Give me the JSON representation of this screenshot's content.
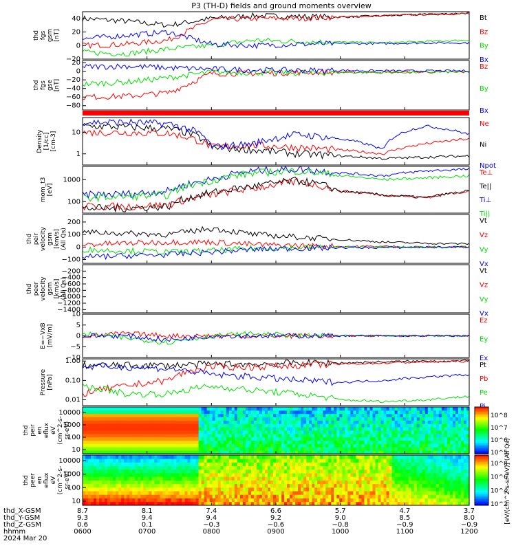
{
  "title": "P3 (TH-D) fields and ground moments overview",
  "colors": {
    "black": "#000000",
    "red": "#ff0000",
    "green": "#00e000",
    "blue": "#0000ff"
  },
  "chart_data": [
    {
      "type": "line",
      "panel": "fgs_gsm",
      "ylabel": [
        "thd",
        "fgs",
        "gsm",
        "[nT]"
      ],
      "ylim": [
        -20,
        50
      ],
      "yticks": [
        "40",
        "20",
        "0",
        "−20"
      ],
      "ytick_values": [
        40,
        20,
        0,
        -20
      ],
      "series": [
        {
          "name": "Bt",
          "color": "#000000",
          "values": [
            40,
            36,
            30,
            40,
            44,
            43,
            42,
            44,
            46,
            48
          ]
        },
        {
          "name": "Bz",
          "color": "#ff0000",
          "values": [
            0,
            2,
            8,
            38,
            40,
            40,
            42,
            44,
            46,
            47
          ]
        },
        {
          "name": "By",
          "color": "#00e000",
          "values": [
            -10,
            -12,
            -5,
            0,
            8,
            6,
            5,
            4,
            6,
            8
          ]
        },
        {
          "name": "Bx",
          "color": "#0000ff",
          "values": [
            10,
            15,
            20,
            2,
            0,
            2,
            3,
            3,
            4,
            4
          ]
        }
      ]
    },
    {
      "type": "line",
      "panel": "fgs_gse",
      "ylabel": [
        "thd",
        "fgs",
        "gse",
        "[nT]"
      ],
      "ylim": [
        -90,
        25
      ],
      "yticks": [
        "20",
        "0",
        "−20",
        "−40",
        "−60",
        "−80"
      ],
      "ytick_values": [
        20,
        0,
        -20,
        -40,
        -60,
        -80
      ],
      "series": [
        {
          "name": "Bz",
          "color": "#ff0000",
          "values": [
            -60,
            -58,
            -50,
            -5,
            -5,
            -3,
            -2,
            -2,
            -2,
            -2
          ]
        },
        {
          "name": "By",
          "color": "#00e000",
          "values": [
            -30,
            -25,
            -15,
            -2,
            -3,
            -4,
            -3,
            -3,
            -2,
            -2
          ]
        },
        {
          "name": "Bx",
          "color": "#0000ff",
          "values": [
            10,
            12,
            8,
            5,
            3,
            2,
            2,
            1,
            1,
            1
          ]
        }
      ]
    },
    {
      "type": "line",
      "panel": "density",
      "scale": "log",
      "ylabel": [
        "Density",
        "[1/cc]",
        "[cm-3]"
      ],
      "ylim": [
        0.3,
        50
      ],
      "yticks": [
        "10",
        "1"
      ],
      "ytick_values": [
        10,
        1
      ],
      "series": [
        {
          "name": "Ne",
          "color": "#ff0000",
          "values": [
            10,
            10,
            9,
            2,
            2.5,
            2,
            1.5,
            1,
            3,
            5
          ]
        },
        {
          "name": "Ni",
          "color": "#000000",
          "values": [
            20,
            18,
            15,
            2,
            1.5,
            1,
            0.8,
            0.6,
            0.7,
            0.8
          ]
        },
        {
          "name": "Npot",
          "color": "#0000ff",
          "values": [
            30,
            30,
            25,
            2,
            3,
            8,
            5,
            1.5,
            20,
            8
          ]
        }
      ]
    },
    {
      "type": "line",
      "panel": "temperature",
      "scale": "log",
      "ylabel": [
        "mom_t3",
        "[eV]"
      ],
      "ylim": [
        30,
        4000
      ],
      "yticks": [
        "1000",
        "100"
      ],
      "ytick_values": [
        1000,
        100
      ],
      "legend_labels": [
        "Te⊥",
        "Te||",
        "Ti⊥",
        "Ti||"
      ],
      "series": [
        {
          "name": "Te⊥",
          "color": "#ff0000",
          "values": [
            60,
            60,
            70,
            200,
            400,
            800,
            300,
            200,
            150,
            300
          ]
        },
        {
          "name": "Te||",
          "color": "#000000",
          "values": [
            50,
            50,
            60,
            250,
            500,
            900,
            300,
            200,
            150,
            300
          ]
        },
        {
          "name": "Ti⊥",
          "color": "#0000ff",
          "values": [
            200,
            220,
            300,
            1000,
            2500,
            3000,
            2000,
            1500,
            2500,
            3000
          ]
        },
        {
          "name": "Ti||",
          "color": "#00e000",
          "values": [
            150,
            170,
            200,
            900,
            2000,
            2500,
            1500,
            1000,
            1200,
            1500
          ]
        }
      ]
    },
    {
      "type": "line",
      "panel": "peir_velocity",
      "ylabel": [
        "thd",
        "peir",
        "velocity",
        "gsm",
        "[km/s]",
        "(All Qs)"
      ],
      "ylim": [
        -130,
        260
      ],
      "yticks": [
        "200",
        "100",
        "0",
        "−100"
      ],
      "ytick_values": [
        200,
        100,
        0,
        -100
      ],
      "series": [
        {
          "name": "Vt",
          "color": "#000000",
          "values": [
            120,
            110,
            100,
            150,
            100,
            80,
            60,
            40,
            30,
            25
          ]
        },
        {
          "name": "Vz",
          "color": "#ff0000",
          "values": [
            20,
            30,
            40,
            40,
            20,
            10,
            5,
            5,
            0,
            0
          ]
        },
        {
          "name": "Vy",
          "color": "#00e000",
          "values": [
            -20,
            -30,
            -40,
            -30,
            -10,
            -5,
            0,
            0,
            0,
            0
          ]
        },
        {
          "name": "Vx",
          "color": "#0000ff",
          "values": [
            -80,
            -70,
            -60,
            -40,
            -20,
            -10,
            -5,
            -5,
            -2,
            0
          ]
        }
      ]
    },
    {
      "type": "line",
      "panel": "peer_velocity",
      "ylabel": [
        "thd",
        "peer",
        "velocity",
        "gsm",
        "[km/s]",
        "(All Qs)"
      ],
      "ylim": [
        -1500,
        0
      ],
      "yticks": [
        "−200",
        "−400",
        "−600",
        "−800",
        "−1000",
        "−1200",
        "−1400"
      ],
      "ytick_values": [
        -200,
        -400,
        -600,
        -800,
        -1000,
        -1200,
        -1400
      ],
      "series": [
        {
          "name": "Vt",
          "color": "#000000",
          "values": []
        },
        {
          "name": "Vz",
          "color": "#ff0000",
          "values": []
        },
        {
          "name": "Vy",
          "color": "#00e000",
          "values": []
        },
        {
          "name": "Vx",
          "color": "#0000ff",
          "values": []
        }
      ]
    },
    {
      "type": "line",
      "panel": "efield",
      "ylabel": [
        "E=−VxB",
        "[mV/m]"
      ],
      "ylim": [
        -10,
        10
      ],
      "yticks": [
        "10",
        "5",
        "0",
        "−5",
        "−10"
      ],
      "ytick_values": [
        10,
        5,
        0,
        -5,
        -10
      ],
      "series": [
        {
          "name": "Ez",
          "color": "#ff0000",
          "values": [
            0,
            1,
            0,
            0,
            0,
            0,
            0,
            0,
            0,
            0
          ]
        },
        {
          "name": "Ey",
          "color": "#00e000",
          "values": [
            1,
            -1,
            -3,
            0,
            1,
            0,
            0,
            0,
            0,
            0
          ]
        },
        {
          "name": "Ex",
          "color": "#0000ff",
          "values": [
            0,
            0,
            -2,
            0,
            0,
            0,
            0,
            0,
            0,
            0
          ]
        }
      ]
    },
    {
      "type": "line",
      "panel": "pressure",
      "scale": "log",
      "ylabel": [
        "Pressure",
        "[nPa]"
      ],
      "ylim": [
        0.005,
        1.3
      ],
      "yticks": [
        "1.00",
        "0.10",
        "0.01"
      ],
      "ytick_values": [
        1,
        0.1,
        0.01
      ],
      "series": [
        {
          "name": "Pt",
          "color": "#000000",
          "values": [
            0.6,
            0.6,
            0.6,
            0.7,
            0.7,
            0.8,
            0.8,
            0.9,
            1,
            1
          ]
        },
        {
          "name": "Pb",
          "color": "#ff0000",
          "values": [
            0.02,
            0.05,
            0.1,
            0.5,
            0.5,
            0.6,
            0.7,
            0.8,
            0.9,
            1
          ]
        },
        {
          "name": "Pe",
          "color": "#00e000",
          "values": [
            0.05,
            0.02,
            0.02,
            0.05,
            0.03,
            0.02,
            0.01,
            0.008,
            0.01,
            0.015
          ]
        },
        {
          "name": "Pi",
          "color": "#0000ff",
          "values": [
            0.5,
            0.5,
            0.4,
            0.2,
            0.15,
            0.1,
            0.08,
            0.1,
            0.15,
            0.2
          ]
        }
      ]
    },
    {
      "type": "heatmap",
      "panel": "peir_eflux",
      "ylabel": [
        "thd",
        "peir",
        "en",
        "eflux",
        "eV",
        "(cm^2-s-",
        "sr-eV)"
      ],
      "yticks": [
        "10000",
        "1000",
        "100",
        "10"
      ],
      "ytick_values": [
        10000,
        1000,
        100,
        10
      ],
      "colorbar_ticks": [
        "10^8",
        "10^7",
        "10^6",
        "10^5"
      ],
      "colorbar_label": "[eV/(cm^2-s-sr-eV)] (All Qs)"
    },
    {
      "type": "heatmap",
      "panel": "peer_eflux",
      "ylabel": [
        "thd",
        "peer",
        "en",
        "eflux",
        "eV",
        "(cm^2-s-",
        "sr-eV)"
      ],
      "yticks": [
        "10000",
        "1000",
        "100",
        "10"
      ],
      "ytick_values": [
        10000,
        1000,
        100,
        10
      ],
      "colorbar_ticks": [
        "10^8",
        "10^6",
        "10^4",
        "10^2"
      ],
      "colorbar_label": "[eV/(cm^2-s-sr-eV)] (All Qs)"
    }
  ],
  "x_axis": {
    "row_labels": [
      "thd_X-GSM",
      "thd_Y-GSM",
      "thd_Z-GSM",
      "hhmm",
      "2024 Mar 20"
    ],
    "x_gsm": [
      "8.7",
      "8.1",
      "7.4",
      "6.6",
      "5.7",
      "4.7",
      "3.7"
    ],
    "y_gsm": [
      "9.3",
      "9.4",
      "9.4",
      "9.2",
      "9.0",
      "8.5",
      "8.0"
    ],
    "z_gsm": [
      "0.6",
      "0.1",
      "−0.3",
      "−0.6",
      "−0.8",
      "−0.9",
      "−0.9"
    ],
    "hhmm": [
      "0600",
      "0700",
      "0800",
      "0900",
      "1000",
      "1100",
      "1200"
    ]
  }
}
